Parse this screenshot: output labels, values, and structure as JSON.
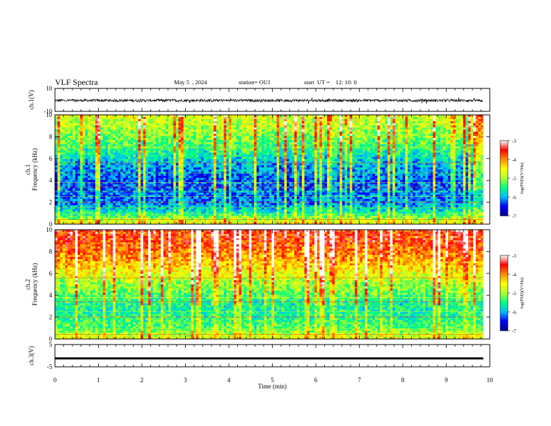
{
  "header": {
    "title": "VLF Spectra",
    "date": "May 5  , 2024",
    "station": "station= OUJ",
    "start": "start  UT =    12: 10: 0"
  },
  "chart_data": [
    {
      "type": "line",
      "panel": "ch1-waveform",
      "ylabel": "ch.1(V)",
      "ylim": [
        -10,
        10
      ],
      "yticks": [
        "10",
        "-10"
      ],
      "xlim": [
        0,
        10
      ],
      "series": [
        {
          "values_description_mean": -0.5,
          "amplitude_approx": 1.2
        }
      ]
    },
    {
      "type": "heatmap",
      "panel": "ch1-spectrogram",
      "ylabel": "ch.1\nFrequency  (kHz)",
      "ylabel_lines": [
        "ch.1",
        "Frequency  (kHz)"
      ],
      "ylim": [
        0,
        10
      ],
      "yticks": [
        "0",
        "2",
        "4",
        "6",
        "8",
        "10"
      ],
      "xlim": [
        0,
        10
      ],
      "colorbar": {
        "label": "log(PSD)(V²/Hz)",
        "range": [
          -7,
          -3
        ],
        "ticks": [
          "-3",
          "-4",
          "-5",
          "-6",
          "-7"
        ]
      },
      "profile": {
        "bands_kHz": [
          0,
          1,
          2,
          3,
          4,
          5,
          6,
          7,
          8,
          9,
          10
        ],
        "levels": [
          -4.5,
          -5.6,
          -6.2,
          -6.2,
          -6.3,
          -6.1,
          -5.8,
          -5.4,
          -5.1,
          -4.9,
          -4.7
        ]
      }
    },
    {
      "type": "heatmap",
      "panel": "ch2-spectrogram",
      "ylabel": "ch.2\nFrequency  (kHz)",
      "ylabel_lines": [
        "ch.2",
        "Frequency  (kHz)"
      ],
      "ylim": [
        0,
        10
      ],
      "yticks": [
        "0",
        "2",
        "4",
        "6",
        "8",
        "10"
      ],
      "xlim": [
        0,
        10
      ],
      "colorbar": {
        "label": "log(PSD)(V²/Hz)",
        "range": [
          -7,
          -3
        ],
        "ticks": [
          "-3",
          "-4",
          "-5",
          "-6",
          "-7"
        ]
      },
      "profile": {
        "bands_kHz": [
          0,
          1,
          2,
          3,
          4,
          5,
          6,
          7,
          8,
          9,
          10
        ],
        "levels": [
          -4.6,
          -5.3,
          -5.5,
          -5.6,
          -5.3,
          -5.0,
          -4.6,
          -4.2,
          -3.9,
          -3.7,
          -3.6
        ]
      }
    },
    {
      "type": "line",
      "panel": "ch3-waveform",
      "ylabel": "ch.3(V)",
      "ylim": [
        -5,
        5
      ],
      "yticks": [
        "5",
        "-5"
      ],
      "xlim": [
        0,
        10
      ],
      "series": [
        {
          "constant_value": -1.2
        }
      ]
    }
  ],
  "xaxis": {
    "label": "Time  (min)",
    "ticks": [
      "0",
      "1",
      "2",
      "3",
      "4",
      "5",
      "6",
      "7",
      "8",
      "9",
      "10"
    ]
  },
  "colors": {
    "colormap": [
      "#00008b",
      "#0000ff",
      "#00bfff",
      "#00ff7f",
      "#adff2f",
      "#ffff00",
      "#ff8c00",
      "#ff0000",
      "#ffffff"
    ]
  }
}
